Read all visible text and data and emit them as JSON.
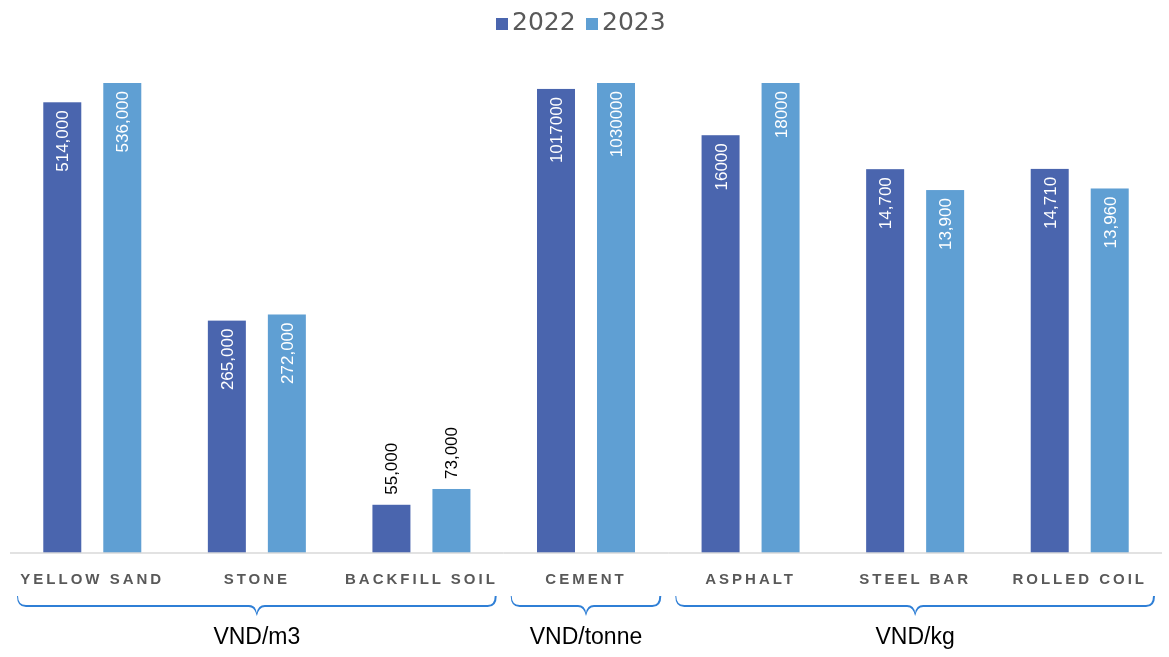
{
  "chart_data": [
    {
      "type": "bar",
      "categories": [
        "YELLOW SAND",
        "STONE",
        "BACKFILL SOIL"
      ],
      "xlabel": "VND/m3",
      "series": [
        {
          "color": "#4a65ae",
          "values": [
            514000,
            265000,
            55000
          ],
          "value_labels": [
            "514,000",
            "265,000",
            "55,000"
          ]
        },
        {
          "color": "#5f9fd3",
          "values": [
            536000,
            272000,
            73000
          ],
          "value_labels": [
            "536,000",
            "272,000",
            "73,000"
          ]
        }
      ]
    },
    {
      "type": "bar",
      "categories": [
        "CEMENT"
      ],
      "xlabel": "VND/tonne",
      "legend": "top",
      "series": [
        {
          "name": "2022",
          "color": "#4a65ae",
          "values": [
            1017000
          ],
          "value_labels": [
            "1017000"
          ]
        },
        {
          "name": "2023",
          "color": "#5f9fd3",
          "values": [
            1030000
          ],
          "value_labels": [
            "1030000"
          ]
        }
      ]
    },
    {
      "type": "bar",
      "categories": [
        "ASPHALT",
        "STEEL BAR",
        "ROLLED COIL"
      ],
      "xlabel": "VND/kg",
      "series": [
        {
          "color": "#4a65ae",
          "values": [
            16000,
            14700,
            14710
          ],
          "value_labels": [
            "16000",
            "14,700",
            "14,710"
          ]
        },
        {
          "color": "#5f9fd3",
          "values": [
            18000,
            13900,
            13960
          ],
          "value_labels": [
            "18000",
            "13,900",
            "13,960"
          ]
        }
      ]
    }
  ]
}
